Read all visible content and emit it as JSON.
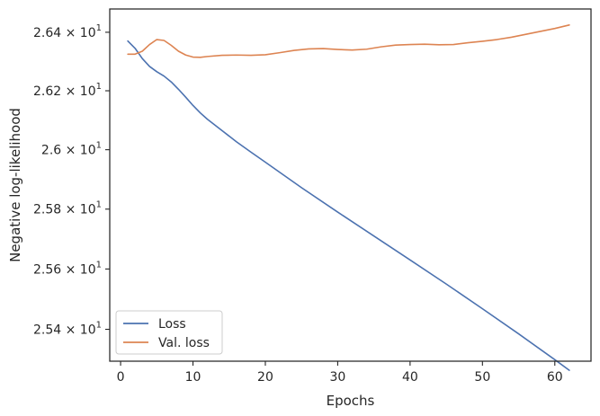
{
  "chart_data": {
    "type": "line",
    "xlabel": "Epochs",
    "ylabel": "Negative log-likelihood",
    "xlim": [
      -1.5,
      65
    ],
    "ylim": [
      25.295,
      26.48
    ],
    "y_scale": "log",
    "grid": false,
    "legend_position": "lower-left",
    "x_ticks": [
      0,
      10,
      20,
      30,
      40,
      50,
      60
    ],
    "y_ticks": [
      {
        "value": 25.4,
        "mantissa": "2.54",
        "base": "× 10",
        "exp": "1"
      },
      {
        "value": 25.6,
        "mantissa": "2.56",
        "base": "× 10",
        "exp": "1"
      },
      {
        "value": 25.8,
        "mantissa": "2.58",
        "base": "× 10",
        "exp": "1"
      },
      {
        "value": 26.0,
        "mantissa": "2.6",
        "base": "× 10",
        "exp": "1"
      },
      {
        "value": 26.2,
        "mantissa": "2.62",
        "base": "× 10",
        "exp": "1"
      },
      {
        "value": 26.4,
        "mantissa": "2.64",
        "base": "× 10",
        "exp": "1"
      }
    ],
    "series": [
      {
        "name": "Loss",
        "color": "#4c72b0",
        "x": [
          1,
          2,
          3,
          4,
          5,
          6,
          7,
          8,
          9,
          10,
          11,
          12,
          14,
          16,
          18,
          20,
          25,
          30,
          35,
          40,
          45,
          50,
          55,
          60,
          62
        ],
        "y": [
          26.37,
          26.345,
          26.31,
          26.283,
          26.265,
          26.25,
          26.23,
          26.205,
          26.178,
          26.15,
          26.125,
          26.103,
          26.065,
          26.027,
          25.992,
          25.958,
          25.872,
          25.79,
          25.71,
          25.63,
          25.55,
          25.468,
          25.385,
          25.3,
          25.265
        ]
      },
      {
        "name": "Val. loss",
        "color": "#dd8452",
        "x": [
          1,
          2,
          3,
          4,
          5,
          6,
          7,
          8,
          9,
          10,
          11,
          12,
          14,
          16,
          18,
          20,
          22,
          24,
          26,
          28,
          30,
          32,
          34,
          36,
          38,
          40,
          42,
          44,
          46,
          48,
          50,
          52,
          54,
          56,
          58,
          60,
          62
        ],
        "y": [
          26.325,
          26.325,
          26.335,
          26.358,
          26.375,
          26.372,
          26.355,
          26.335,
          26.322,
          26.315,
          26.314,
          26.317,
          26.321,
          26.322,
          26.321,
          26.323,
          26.33,
          26.338,
          26.343,
          26.344,
          26.341,
          26.339,
          26.342,
          26.35,
          26.356,
          26.358,
          26.359,
          26.357,
          26.358,
          26.364,
          26.369,
          26.375,
          26.383,
          26.393,
          26.403,
          26.413,
          26.425
        ]
      }
    ]
  }
}
